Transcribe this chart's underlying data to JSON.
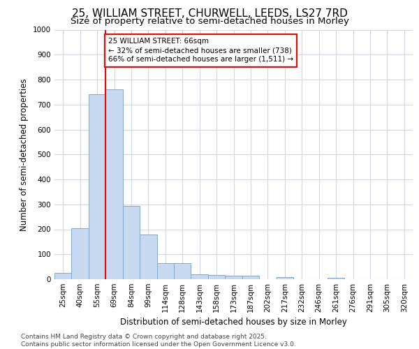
{
  "title_line1": "25, WILLIAM STREET, CHURWELL, LEEDS, LS27 7RD",
  "title_line2": "Size of property relative to semi-detached houses in Morley",
  "xlabel": "Distribution of semi-detached houses by size in Morley",
  "ylabel": "Number of semi-detached properties",
  "categories": [
    "25sqm",
    "40sqm",
    "55sqm",
    "69sqm",
    "84sqm",
    "99sqm",
    "114sqm",
    "128sqm",
    "143sqm",
    "158sqm",
    "173sqm",
    "187sqm",
    "202sqm",
    "217sqm",
    "232sqm",
    "246sqm",
    "261sqm",
    "276sqm",
    "291sqm",
    "305sqm",
    "320sqm"
  ],
  "values": [
    25,
    205,
    740,
    760,
    295,
    178,
    65,
    65,
    20,
    17,
    13,
    13,
    0,
    8,
    0,
    0,
    5,
    0,
    0,
    0,
    0
  ],
  "bar_color": "#c6d9f0",
  "bar_edge_color": "#7da9d0",
  "vline_color": "red",
  "vline_x_index": 2.5,
  "annotation_text": "25 WILLIAM STREET: 66sqm\n← 32% of semi-detached houses are smaller (738)\n66% of semi-detached houses are larger (1,511) →",
  "annotation_box_color": "white",
  "annotation_box_edge_color": "red",
  "ylim": [
    0,
    1000
  ],
  "yticks": [
    0,
    100,
    200,
    300,
    400,
    500,
    600,
    700,
    800,
    900,
    1000
  ],
  "grid_color": "#d0d8e8",
  "background_color": "white",
  "footer_text": "Contains HM Land Registry data © Crown copyright and database right 2025.\nContains public sector information licensed under the Open Government Licence v3.0.",
  "title_fontsize": 11,
  "subtitle_fontsize": 9.5,
  "axis_label_fontsize": 8.5,
  "tick_fontsize": 7.5,
  "annotation_fontsize": 7.5,
  "footer_fontsize": 6.5
}
